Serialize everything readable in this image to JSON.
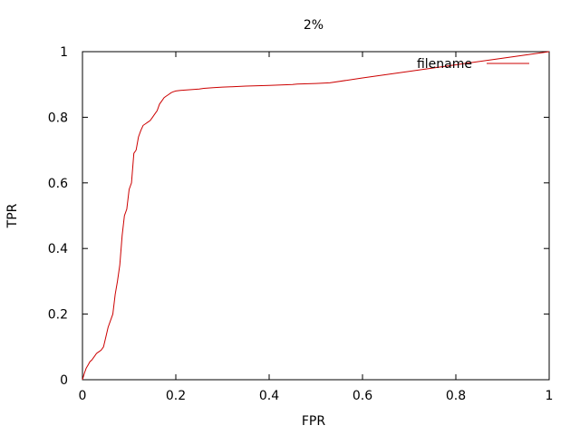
{
  "chart_data": {
    "type": "line",
    "title": "2%",
    "xlabel": "FPR",
    "ylabel": "TPR",
    "xlim": [
      0,
      1
    ],
    "ylim": [
      0,
      1
    ],
    "x_ticks": [
      0,
      0.2,
      0.4,
      0.6,
      0.8,
      1
    ],
    "x_tick_labels": [
      "0",
      "0.2",
      "0.4",
      "0.6",
      "0.8",
      "1"
    ],
    "y_ticks": [
      0,
      0.2,
      0.4,
      0.6,
      0.8,
      1
    ],
    "y_tick_labels": [
      "0",
      "0.2",
      "0.4",
      "0.6",
      "0.8",
      "1"
    ],
    "grid": false,
    "legend": "top-right",
    "series": [
      {
        "name": "filename",
        "color": "#cc0000",
        "x": [
          0,
          0.004,
          0.008,
          0.012,
          0.016,
          0.02,
          0.025,
          0.03,
          0.035,
          0.04,
          0.045,
          0.05,
          0.055,
          0.06,
          0.065,
          0.07,
          0.075,
          0.08,
          0.085,
          0.09,
          0.095,
          0.1,
          0.105,
          0.11,
          0.115,
          0.12,
          0.125,
          0.13,
          0.135,
          0.14,
          0.145,
          0.15,
          0.155,
          0.16,
          0.165,
          0.17,
          0.175,
          0.18,
          0.185,
          0.19,
          0.195,
          0.2,
          0.21,
          0.22,
          0.23,
          0.25,
          0.26,
          0.28,
          0.3,
          0.32,
          0.35,
          0.4,
          0.45,
          0.46,
          0.5,
          0.53,
          0.6,
          0.7,
          0.8,
          0.9,
          1.0
        ],
        "y": [
          0,
          0.02,
          0.035,
          0.045,
          0.055,
          0.06,
          0.07,
          0.08,
          0.085,
          0.09,
          0.1,
          0.13,
          0.16,
          0.18,
          0.2,
          0.26,
          0.3,
          0.35,
          0.44,
          0.5,
          0.52,
          0.58,
          0.6,
          0.69,
          0.7,
          0.74,
          0.76,
          0.775,
          0.78,
          0.785,
          0.79,
          0.8,
          0.81,
          0.82,
          0.84,
          0.85,
          0.86,
          0.865,
          0.87,
          0.875,
          0.878,
          0.88,
          0.882,
          0.883,
          0.884,
          0.886,
          0.888,
          0.89,
          0.892,
          0.893,
          0.895,
          0.897,
          0.9,
          0.901,
          0.903,
          0.905,
          0.92,
          0.94,
          0.96,
          0.98,
          1.0
        ]
      }
    ]
  }
}
